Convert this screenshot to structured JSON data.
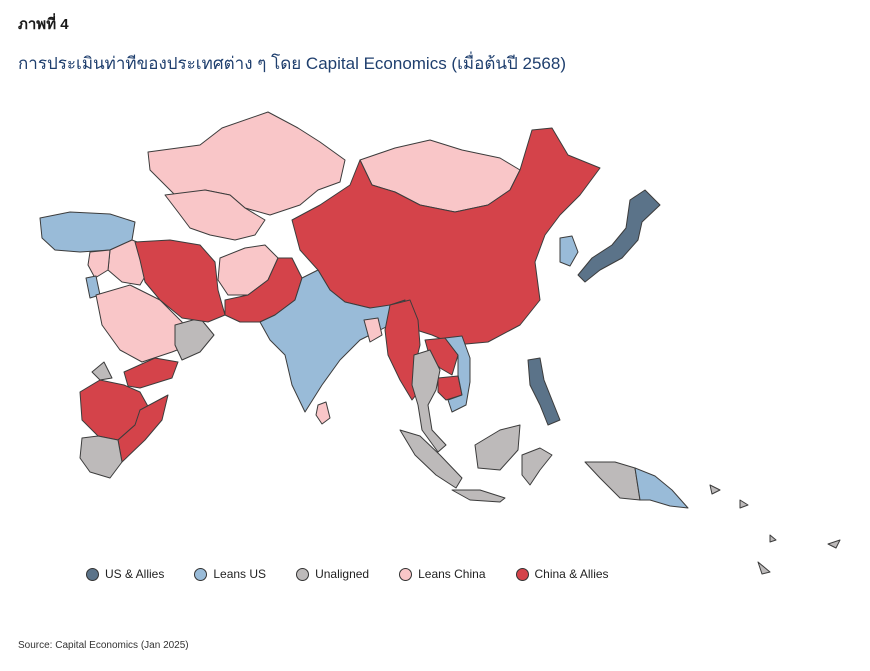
{
  "figure_label": "ภาพที่ 4",
  "title": "การประเมินท่าทีของประเทศต่าง ๆ โดย Capital Economics (เมื่อต้นปี 2568)",
  "source": "Source: Capital Economics (Jan 2025)",
  "stroke_color": "#3c3c3c",
  "categories": {
    "us": {
      "label": "US & Allies",
      "color": "#5b7389"
    },
    "leans_us": {
      "label": "Leans US",
      "color": "#99bbd8"
    },
    "unaligned": {
      "label": "Unaligned",
      "color": "#bdbaba"
    },
    "leans_china": {
      "label": "Leans China",
      "color": "#f9c6c8"
    },
    "china": {
      "label": "China & Allies",
      "color": "#d4434a"
    }
  },
  "legend": [
    "us",
    "leans_us",
    "unaligned",
    "leans_china",
    "china"
  ]
}
